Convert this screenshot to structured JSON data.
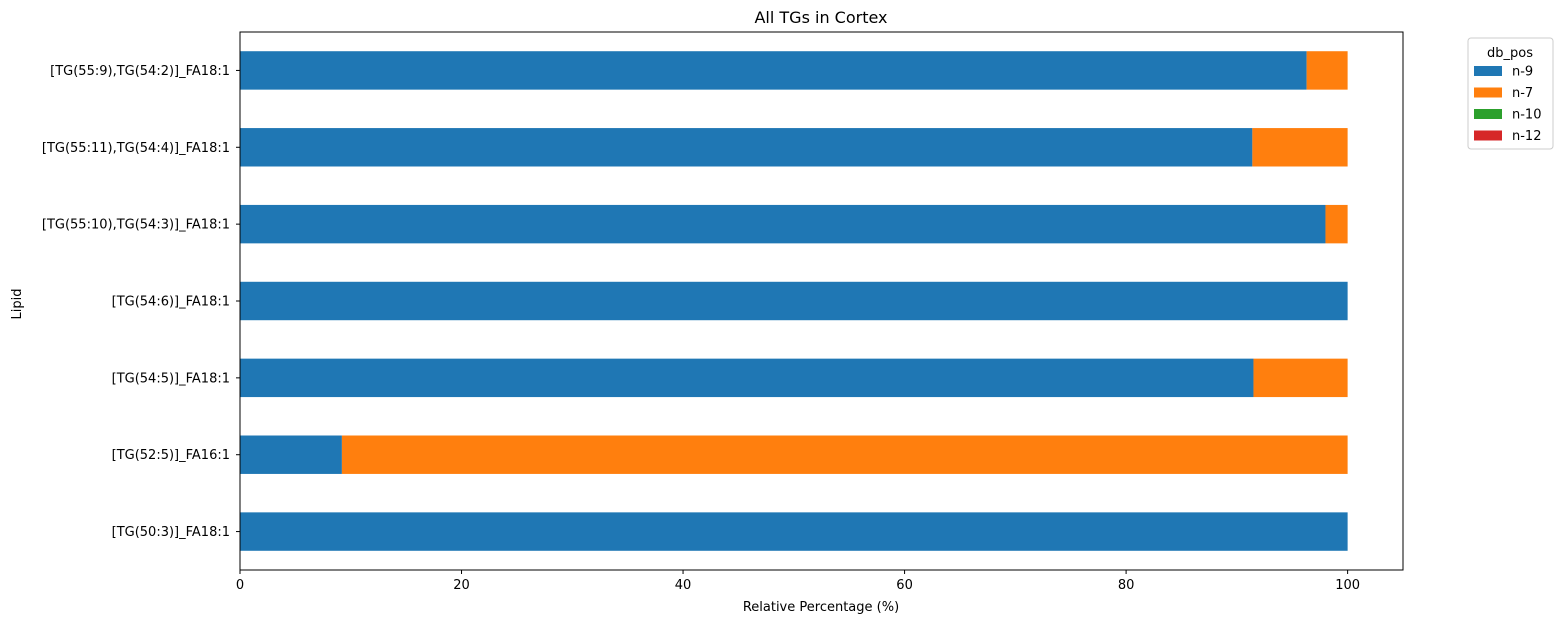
{
  "chart_data": {
    "type": "bar",
    "orientation": "horizontal",
    "stacked": true,
    "title": "All TGs in Cortex",
    "xlabel": "Relative Percentage (%)",
    "ylabel": "Lipid",
    "xlim": [
      0,
      105
    ],
    "xticks": [
      0,
      20,
      40,
      60,
      80,
      100
    ],
    "grid": false,
    "legend": {
      "title": "db_pos",
      "placement": "outside-top-right"
    },
    "categories": [
      "[TG(50:3)]_FA18:1",
      "[TG(52:5)]_FA16:1",
      "[TG(54:5)]_FA18:1",
      "[TG(54:6)]_FA18:1",
      "[TG(55:10),TG(54:3)]_FA18:1",
      "[TG(55:11),TG(54:4)]_FA18:1",
      "[TG(55:9),TG(54:2)]_FA18:1"
    ],
    "series": [
      {
        "name": "n-9",
        "color": "#1f77b4",
        "values": [
          100,
          9.2,
          91.5,
          100,
          98.0,
          91.4,
          96.3
        ]
      },
      {
        "name": "n-7",
        "color": "#ff7f0e",
        "values": [
          0,
          90.8,
          8.5,
          0,
          2.0,
          8.6,
          3.7
        ]
      },
      {
        "name": "n-10",
        "color": "#2ca02c",
        "values": [
          0,
          0,
          0,
          0,
          0,
          0,
          0
        ]
      },
      {
        "name": "n-12",
        "color": "#d62728",
        "values": [
          0,
          0,
          0,
          0,
          0,
          0,
          0
        ]
      }
    ]
  }
}
